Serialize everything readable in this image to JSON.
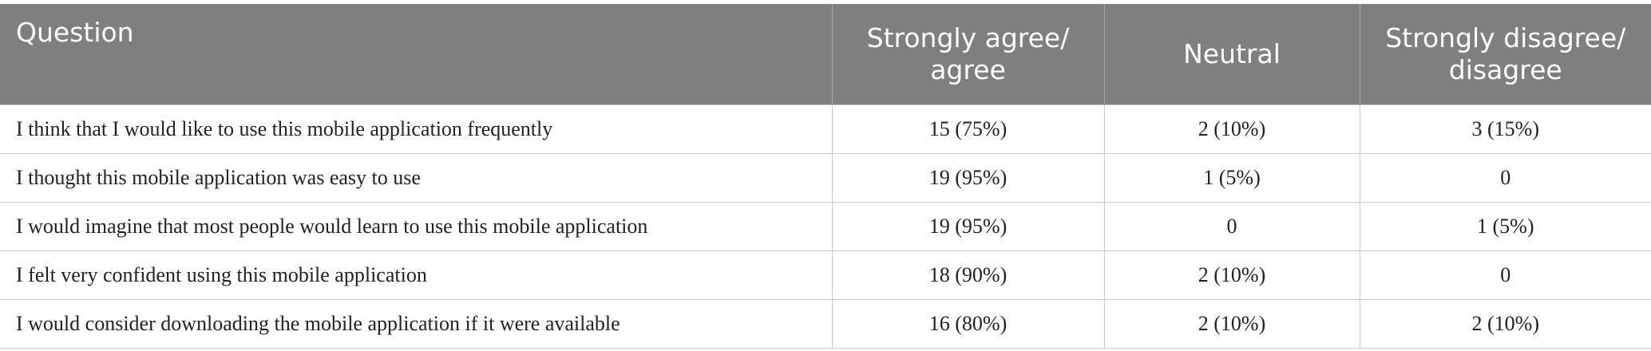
{
  "table": {
    "header": [
      "Question",
      "Strongly agree/ agree",
      "Neutral",
      "Strongly disagree/ disagree"
    ],
    "rows": [
      [
        "I think that I would like to use this mobile application frequently",
        "15 (75%)",
        "2 (10%)",
        "3 (15%)"
      ],
      [
        "I thought this mobile application was easy to use",
        "19 (95%)",
        "1 (5%)",
        "0"
      ],
      [
        "I would imagine that most people would learn to use this mobile application",
        "19 (95%)",
        "0",
        "1 (5%)"
      ],
      [
        "I felt very confident using this mobile application",
        "18 (90%)",
        "2 (10%)",
        "0"
      ],
      [
        "I would consider downloading the mobile application if it were available",
        "16 (80%)",
        "2 (10%)",
        "2 (10%)"
      ]
    ]
  }
}
